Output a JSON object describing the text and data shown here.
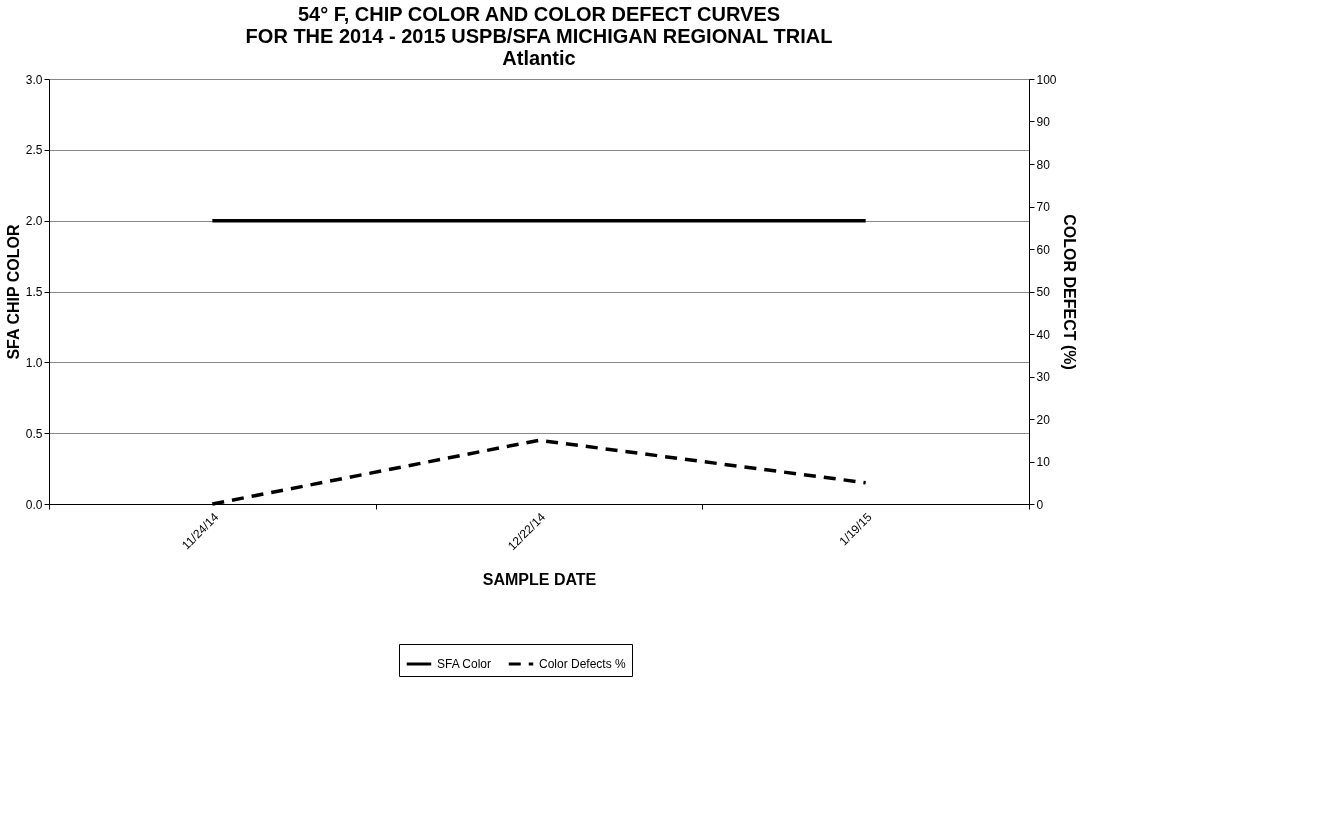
{
  "chart_data": {
    "type": "line",
    "title": [
      "54° F, CHIP COLOR AND COLOR DEFECT CURVES",
      "FOR THE 2014 - 2015 USPB/SFA MICHIGAN REGIONAL TRIAL",
      "Atlantic"
    ],
    "xlabel": "SAMPLE DATE",
    "ylabel": "SFA CHIP COLOR",
    "y2label": "COLOR DEFECT (%)",
    "categories": [
      "11/24/14",
      "12/22/14",
      "1/19/15"
    ],
    "series": [
      {
        "name": "SFA Color",
        "color": "#000000",
        "values": [
          2.0,
          2.0,
          2.0
        ],
        "line_style": "solid"
      },
      {
        "name": "Color Defects %",
        "color": "#000000",
        "values": [
          0,
          15,
          5
        ],
        "line_style": "dashed",
        "axis": "y2"
      }
    ],
    "ylim": [
      0,
      3
    ],
    "yticks": [
      {
        "value": 0,
        "label": "0.0"
      },
      {
        "value": 0.5,
        "label": "0.5"
      },
      {
        "value": 1,
        "label": "1.0"
      },
      {
        "value": 1.5,
        "label": "1.5"
      },
      {
        "value": 2,
        "label": "2.0"
      },
      {
        "value": 2.5,
        "label": "2.5"
      },
      {
        "value": 3,
        "label": "3.0"
      }
    ],
    "y2lim": [
      0,
      100
    ],
    "y2ticks": [
      0,
      10,
      20,
      30,
      40,
      50,
      60,
      70,
      80,
      90,
      100
    ],
    "grid": "y",
    "legend": "bottom",
    "marker": "none"
  }
}
